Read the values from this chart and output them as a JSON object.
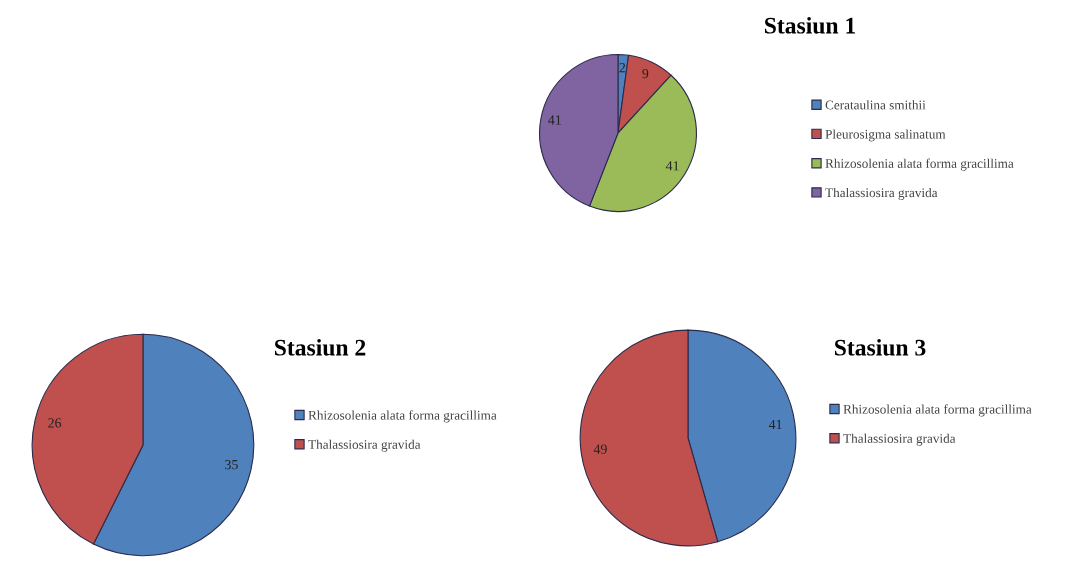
{
  "chart_data": [
    {
      "type": "pie",
      "title": "Stasiun 1",
      "categories": [
        "Cerataulina smithii",
        "Pleurosigma salinatum",
        "Rhizosolenia alata forma gracillima",
        "Thalassiosira gravida"
      ],
      "values": [
        2,
        9,
        41,
        41
      ],
      "colors": [
        "#4f81bd",
        "#c0504d",
        "#9bbb59",
        "#8064a2"
      ],
      "data_labels": true,
      "legend": "right"
    },
    {
      "type": "pie",
      "title": "Stasiun 2",
      "categories": [
        "Rhizosolenia alata forma gracillima",
        "Thalassiosira gravida"
      ],
      "values": [
        35,
        26
      ],
      "colors": [
        "#4f81bd",
        "#c0504d"
      ],
      "data_labels": true,
      "legend": "right"
    },
    {
      "type": "pie",
      "title": "Stasiun 3",
      "categories": [
        "Rhizosolenia alata forma gracillima",
        "Thalassiosira gravida"
      ],
      "values": [
        41,
        49
      ],
      "colors": [
        "#4f81bd",
        "#c0504d"
      ],
      "data_labels": true,
      "legend": "right"
    }
  ]
}
